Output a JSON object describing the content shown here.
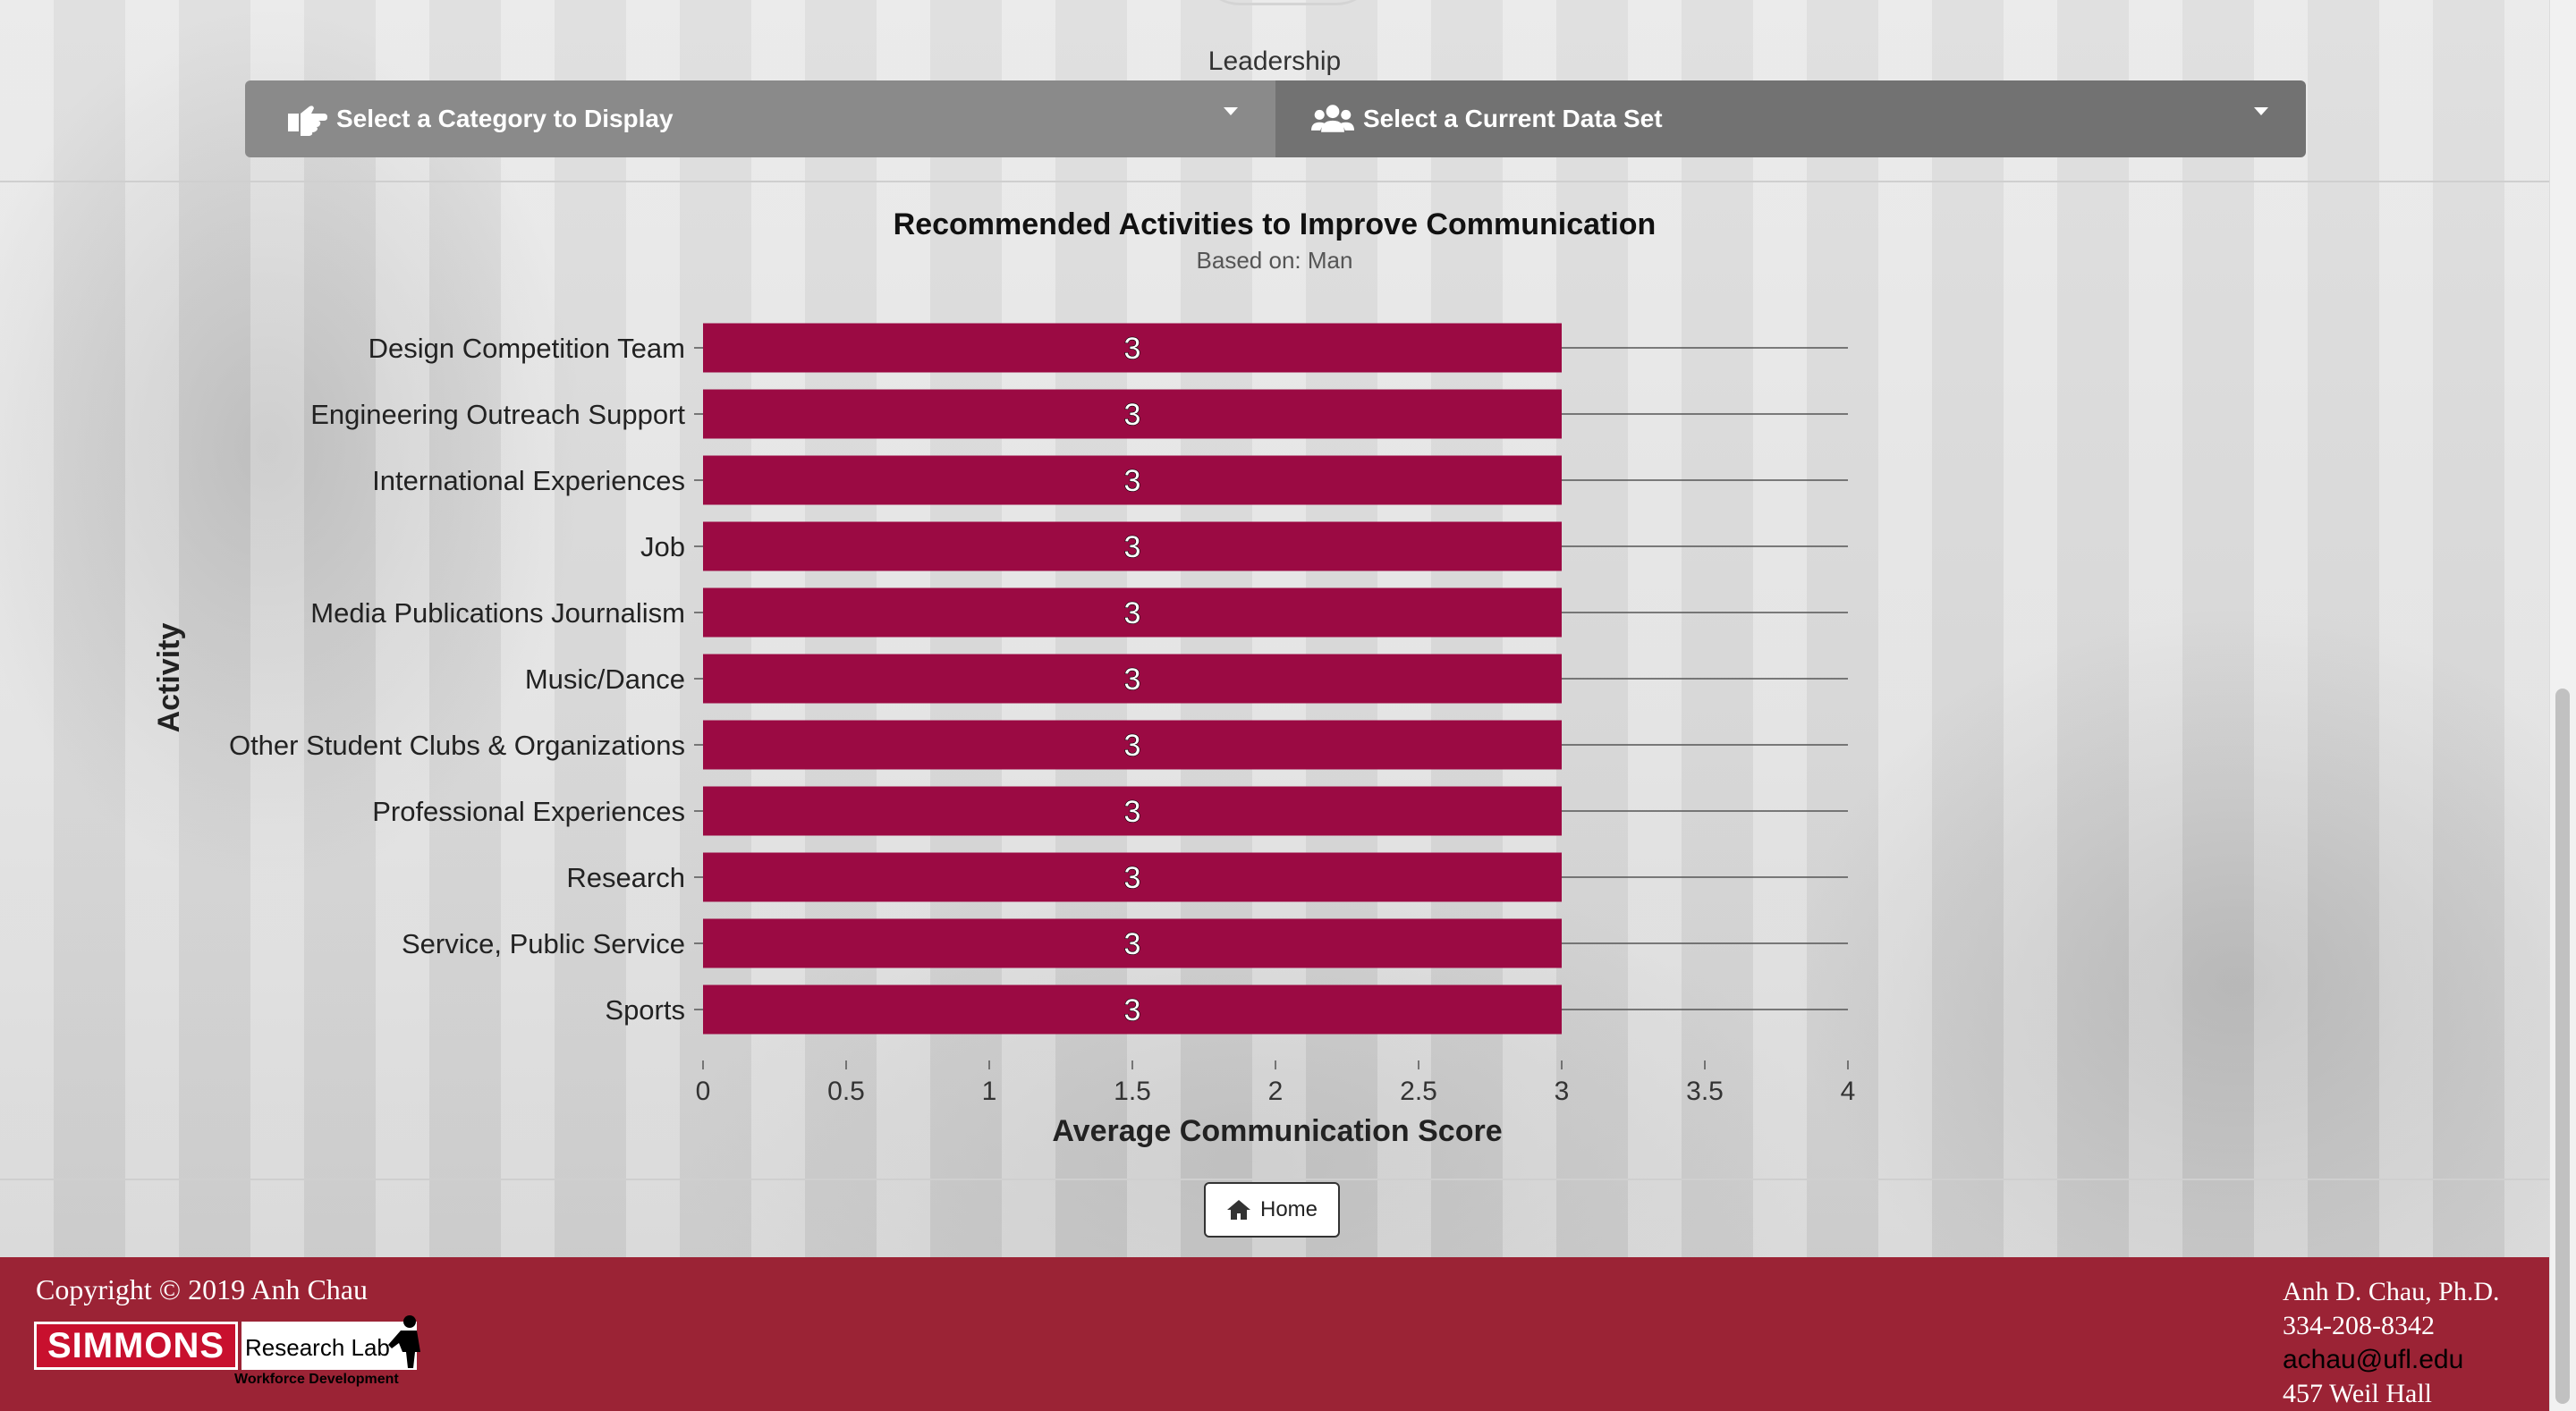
{
  "header": {
    "section_label": "Leadership",
    "category_selector": {
      "label": "Select a Category to Display",
      "icon": "pointing-hand-icon"
    },
    "dataset_selector": {
      "label": "Select a Current Data Set",
      "icon": "users-icon"
    }
  },
  "chart_data": {
    "type": "bar",
    "orientation": "horizontal",
    "title": "Recommended Activities to Improve Communication",
    "subtitle": "Based on: Man",
    "xlabel": "Average Communication Score",
    "ylabel": "Activity",
    "xlim": [
      0,
      4
    ],
    "xticks": [
      "0",
      "0.5",
      "1",
      "1.5",
      "2",
      "2.5",
      "3",
      "3.5",
      "4"
    ],
    "categories": [
      "Design Competition Team",
      "Engineering Outreach Support",
      "International Experiences",
      "Job",
      "Media Publications Journalism",
      "Music/Dance",
      "Other Student Clubs & Organizations",
      "Professional Experiences",
      "Research",
      "Service, Public Service",
      "Sports"
    ],
    "values": [
      3,
      3,
      3,
      3,
      3,
      3,
      3,
      3,
      3,
      3,
      3
    ],
    "data_labels": [
      "3",
      "3",
      "3",
      "3",
      "3",
      "3",
      "3",
      "3",
      "3",
      "3",
      "3"
    ],
    "bar_color": "#9b0a43",
    "grid": "horizontal lines at categories"
  },
  "nav": {
    "home_label": "Home",
    "home_icon": "home-icon"
  },
  "footer": {
    "copyright": "Copyright © 2019 Anh Chau",
    "logo": {
      "brand": "SIMMONS",
      "lab": "Research Lab",
      "sub": "Workforce Development"
    },
    "contact": {
      "name": "Anh D. Chau, Ph.D.",
      "phone": "334-208-8342",
      "email": "achau@ufl.edu",
      "address": "457 Weil Hall"
    },
    "color": "#9b2335"
  }
}
